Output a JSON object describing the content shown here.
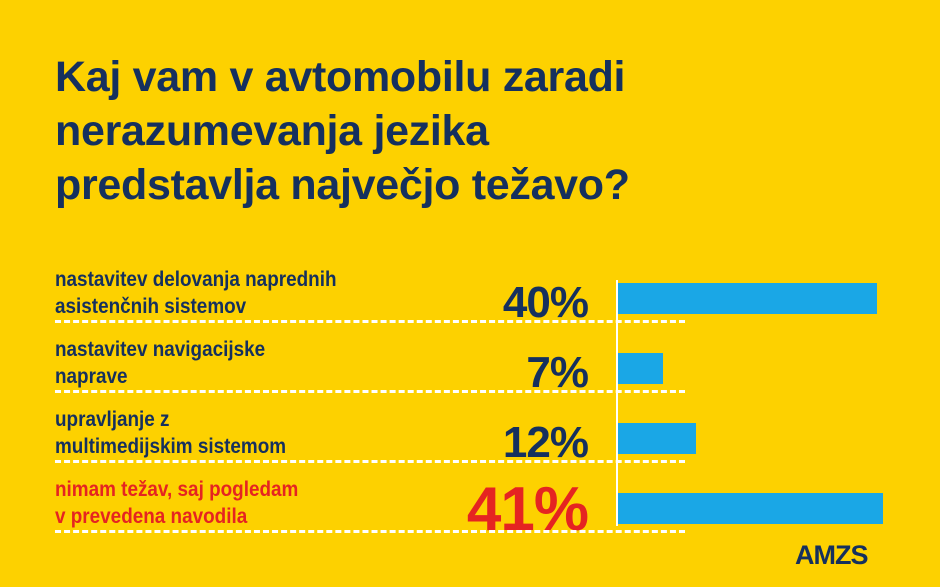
{
  "chart_data": {
    "type": "bar",
    "orientation": "horizontal",
    "title": "Kaj vam v avtomobilu zaradi nerazumevanja jezika predstavlja največjo težavo?",
    "categories": [
      "nastavitev delovanja naprednih asistenčnih sistemov",
      "nastavitev navigacijske naprave",
      "upravljanje z multimedijskim sistemom",
      "nimam težav, saj pogledam v prevedena navodila"
    ],
    "category_lines": [
      [
        "nastavitev delovanja naprednih",
        "asistenčnih sistemov"
      ],
      [
        "nastavitev navigacijske",
        "naprave"
      ],
      [
        "upravljanje z",
        "multimedijskim sistemom"
      ],
      [
        "nimam težav, saj pogledam",
        "v prevedena navodila"
      ]
    ],
    "values": [
      40,
      7,
      12,
      41
    ],
    "value_labels": [
      "40%",
      "7%",
      "12%",
      "41%"
    ],
    "highlight_index": 3,
    "colors": {
      "background": "#FDD100",
      "bar": "#1aa7e6",
      "text": "#15305e",
      "highlight": "#e52421"
    },
    "grid": false
  },
  "title_lines": [
    "Kaj vam v avtomobilu zaradi",
    "nerazumevanja jezika",
    "predstavlja največjo težavo?"
  ],
  "logo": "AMZS"
}
